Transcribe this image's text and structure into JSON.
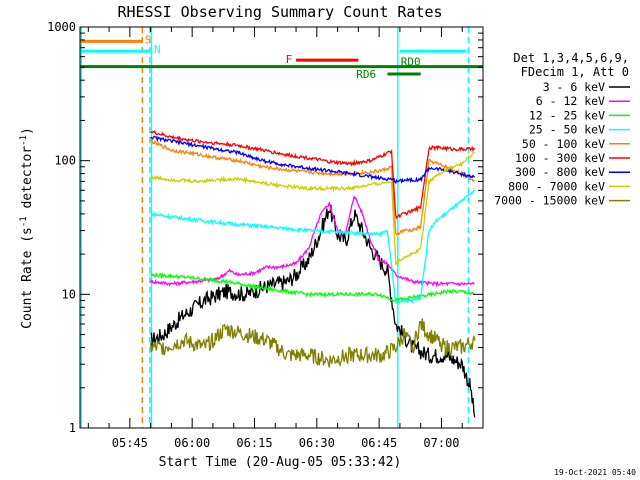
{
  "chart_data": {
    "type": "line",
    "title": "RHESSI Observing Summary Count Rates",
    "xlabel": "Start Time (20-Aug-05 05:33:42)",
    "ylabel_main": "Count Rate (s",
    "ylabel_sup1": "-1",
    "ylabel_mid": " detector",
    "ylabel_sup2": "-1",
    "ylabel_end": ")",
    "y_scale": "log",
    "ylim": [
      1,
      1000
    ],
    "xlim_min": [
      0,
      97
    ],
    "x_ticks": [
      {
        "min": 12,
        "label": "05:45"
      },
      {
        "min": 27,
        "label": "06:00"
      },
      {
        "min": 42,
        "label": "06:15"
      },
      {
        "min": 57,
        "label": "06:30"
      },
      {
        "min": 72,
        "label": "06:45"
      },
      {
        "min": 87,
        "label": "07:00"
      }
    ],
    "y_ticks": [
      {
        "value": 1,
        "label": "1"
      },
      {
        "value": 10,
        "label": "10"
      },
      {
        "value": 100,
        "label": "100"
      },
      {
        "value": 1000,
        "label": "1000"
      }
    ],
    "legend_header": [
      "Det 1,3,4,5,6,9,",
      "FDecim 1, Att 0"
    ],
    "series": [
      {
        "name": "3 - 6 keV",
        "color": "#000000",
        "points": [
          [
            17,
            4.5
          ],
          [
            20,
            5
          ],
          [
            25,
            7
          ],
          [
            30,
            9
          ],
          [
            35,
            10.5
          ],
          [
            40,
            10
          ],
          [
            45,
            11.5
          ],
          [
            50,
            12.5
          ],
          [
            52,
            14
          ],
          [
            55,
            18
          ],
          [
            58,
            30
          ],
          [
            60,
            45
          ],
          [
            62,
            28
          ],
          [
            64,
            25
          ],
          [
            66,
            40
          ],
          [
            68,
            30
          ],
          [
            70,
            22
          ],
          [
            72,
            18
          ],
          [
            74,
            15
          ],
          [
            76,
            6
          ],
          [
            80,
            4
          ],
          [
            84,
            3.5
          ],
          [
            88,
            3.5
          ],
          [
            92,
            3
          ],
          [
            94,
            2
          ],
          [
            95,
            1.2
          ]
        ]
      },
      {
        "name": "6 - 12 keV",
        "color": "#ff00ff",
        "points": [
          [
            17,
            12.5
          ],
          [
            22,
            12
          ],
          [
            28,
            12.5
          ],
          [
            33,
            13
          ],
          [
            36,
            15
          ],
          [
            38,
            14
          ],
          [
            42,
            14.5
          ],
          [
            45,
            16
          ],
          [
            48,
            16
          ],
          [
            52,
            17
          ],
          [
            55,
            22
          ],
          [
            58,
            40
          ],
          [
            60,
            48
          ],
          [
            62,
            30
          ],
          [
            64,
            29
          ],
          [
            66,
            55
          ],
          [
            68,
            40
          ],
          [
            70,
            25
          ],
          [
            72,
            18
          ],
          [
            74,
            17
          ],
          [
            76,
            14
          ],
          [
            80,
            12.5
          ],
          [
            85,
            12
          ],
          [
            90,
            12
          ],
          [
            95,
            12
          ]
        ]
      },
      {
        "name": "12 - 25 keV",
        "color": "#00ff00",
        "points": [
          [
            17,
            14
          ],
          [
            25,
            13.5
          ],
          [
            35,
            12.5
          ],
          [
            45,
            11
          ],
          [
            55,
            10
          ],
          [
            65,
            10
          ],
          [
            72,
            10
          ],
          [
            76,
            9
          ],
          [
            80,
            9.5
          ],
          [
            85,
            10
          ],
          [
            88,
            10.5
          ],
          [
            92,
            10.5
          ],
          [
            95,
            10
          ]
        ]
      },
      {
        "name": "25 - 50 keV",
        "color": "#00ffff",
        "points": [
          [
            17,
            40
          ],
          [
            25,
            37
          ],
          [
            35,
            34
          ],
          [
            45,
            32
          ],
          [
            55,
            30
          ],
          [
            65,
            29
          ],
          [
            72,
            28
          ],
          [
            74,
            30
          ],
          [
            76,
            8.5
          ],
          [
            78,
            9
          ],
          [
            80,
            9
          ],
          [
            82,
            9.5
          ],
          [
            84,
            30
          ],
          [
            86,
            36
          ],
          [
            88,
            40
          ],
          [
            90,
            45
          ],
          [
            92,
            50
          ],
          [
            95,
            60
          ]
        ]
      },
      {
        "name": "50 - 100 keV",
        "color": "#ff8000",
        "points": [
          [
            17,
            140
          ],
          [
            22,
            120
          ],
          [
            28,
            112
          ],
          [
            33,
            105
          ],
          [
            38,
            100
          ],
          [
            44,
            90
          ],
          [
            50,
            85
          ],
          [
            55,
            82
          ],
          [
            60,
            80
          ],
          [
            65,
            80
          ],
          [
            70,
            82
          ],
          [
            73,
            85
          ],
          [
            75,
            90
          ],
          [
            76,
            28
          ],
          [
            78,
            30
          ],
          [
            80,
            30
          ],
          [
            82,
            32
          ],
          [
            84,
            100
          ],
          [
            86,
            95
          ],
          [
            88,
            90
          ],
          [
            90,
            85
          ],
          [
            92,
            80
          ],
          [
            95,
            70
          ]
        ]
      },
      {
        "name": "100 - 300 keV",
        "color": "#ff0000",
        "points": [
          [
            17,
            165
          ],
          [
            22,
            150
          ],
          [
            28,
            140
          ],
          [
            33,
            135
          ],
          [
            38,
            130
          ],
          [
            44,
            120
          ],
          [
            50,
            110
          ],
          [
            55,
            105
          ],
          [
            60,
            98
          ],
          [
            65,
            95
          ],
          [
            70,
            100
          ],
          [
            73,
            110
          ],
          [
            75,
            118
          ],
          [
            76,
            38
          ],
          [
            78,
            40
          ],
          [
            80,
            42
          ],
          [
            82,
            45
          ],
          [
            84,
            125
          ],
          [
            87,
            125
          ],
          [
            90,
            122
          ],
          [
            95,
            122
          ]
        ]
      },
      {
        "name": "300 - 800 keV",
        "color": "#0000ff",
        "points": [
          [
            17,
            150
          ],
          [
            22,
            140
          ],
          [
            28,
            130
          ],
          [
            33,
            122
          ],
          [
            38,
            115
          ],
          [
            44,
            100
          ],
          [
            50,
            92
          ],
          [
            55,
            88
          ],
          [
            60,
            84
          ],
          [
            65,
            80
          ],
          [
            70,
            76
          ],
          [
            73,
            73
          ],
          [
            75,
            73
          ],
          [
            76,
            70
          ],
          [
            78,
            72
          ],
          [
            80,
            72
          ],
          [
            82,
            72
          ],
          [
            84,
            88
          ],
          [
            87,
            86
          ],
          [
            90,
            82
          ],
          [
            95,
            75
          ]
        ]
      },
      {
        "name": "800 - 7000 keV",
        "color": "#cccc00",
        "points": [
          [
            17,
            75
          ],
          [
            22,
            72
          ],
          [
            28,
            70
          ],
          [
            33,
            72
          ],
          [
            38,
            73
          ],
          [
            44,
            68
          ],
          [
            50,
            64
          ],
          [
            55,
            62
          ],
          [
            60,
            62
          ],
          [
            65,
            62
          ],
          [
            70,
            66
          ],
          [
            73,
            68
          ],
          [
            75,
            70
          ],
          [
            76,
            17
          ],
          [
            78,
            19
          ],
          [
            80,
            20
          ],
          [
            82,
            22
          ],
          [
            84,
            70
          ],
          [
            86,
            78
          ],
          [
            88,
            85
          ],
          [
            90,
            90
          ],
          [
            92,
            95
          ],
          [
            95,
            115
          ]
        ]
      },
      {
        "name": "7000 - 15000 keV",
        "color": "#808000",
        "points": [
          [
            17,
            4
          ],
          [
            20,
            4
          ],
          [
            25,
            4.5
          ],
          [
            30,
            4
          ],
          [
            35,
            5.5
          ],
          [
            40,
            5
          ],
          [
            45,
            4.5
          ],
          [
            50,
            3.5
          ],
          [
            55,
            3.5
          ],
          [
            60,
            3.2
          ],
          [
            65,
            3.5
          ],
          [
            70,
            3.5
          ],
          [
            73,
            3.5
          ],
          [
            76,
            4
          ],
          [
            78,
            5
          ],
          [
            80,
            4
          ],
          [
            82,
            6
          ],
          [
            84,
            5
          ],
          [
            86,
            4.5
          ],
          [
            88,
            4
          ],
          [
            90,
            4
          ],
          [
            92,
            4
          ],
          [
            95,
            4.5
          ]
        ]
      }
    ],
    "annotations": [
      {
        "label": "S",
        "color": "#ff8000"
      },
      {
        "label": "N",
        "color": "#00ffff"
      },
      {
        "label": "F",
        "color": "#ff0000"
      },
      {
        "label": "RD0",
        "color": "#008000"
      },
      {
        "label": "RD6",
        "color": "#008000"
      }
    ],
    "flag_bars": [
      {
        "flag": "S",
        "level": 780,
        "segments": [
          [
            0,
            15
          ]
        ],
        "color": "#ff8000"
      },
      {
        "flag": "N",
        "level": 660,
        "segments": [
          [
            0,
            17
          ],
          [
            77,
            93
          ]
        ],
        "color": "#00ffff"
      },
      {
        "flag": "F",
        "level": 565,
        "segments": [
          [
            52,
            67
          ]
        ],
        "color": "#ff0000"
      },
      {
        "flag": "RD0",
        "level": 505,
        "segments": [
          [
            0,
            97
          ]
        ],
        "color": "#008000"
      },
      {
        "flag": "RD6",
        "level": 445,
        "segments": [
          [
            74,
            82
          ]
        ],
        "color": "#008000"
      }
    ],
    "vertical_markers": [
      {
        "min": 0.3,
        "color": "#00ffff",
        "style": "solid"
      },
      {
        "min": 15,
        "color": "#ff8000",
        "style": "dashed"
      },
      {
        "min": 16.8,
        "color": "#00ffff",
        "style": "dashed"
      },
      {
        "min": 17.2,
        "color": "#00ffff",
        "style": "solid"
      },
      {
        "min": 76.5,
        "color": "#00ffff",
        "style": "solid"
      },
      {
        "min": 93.5,
        "color": "#00ffff",
        "style": "dashed"
      }
    ],
    "grid": false,
    "legend_position": "right"
  },
  "timestamp": "19-Oct-2021 05:40",
  "colors": {
    "background": "#ffffff",
    "axes": "#000000",
    "text": "#000000"
  }
}
